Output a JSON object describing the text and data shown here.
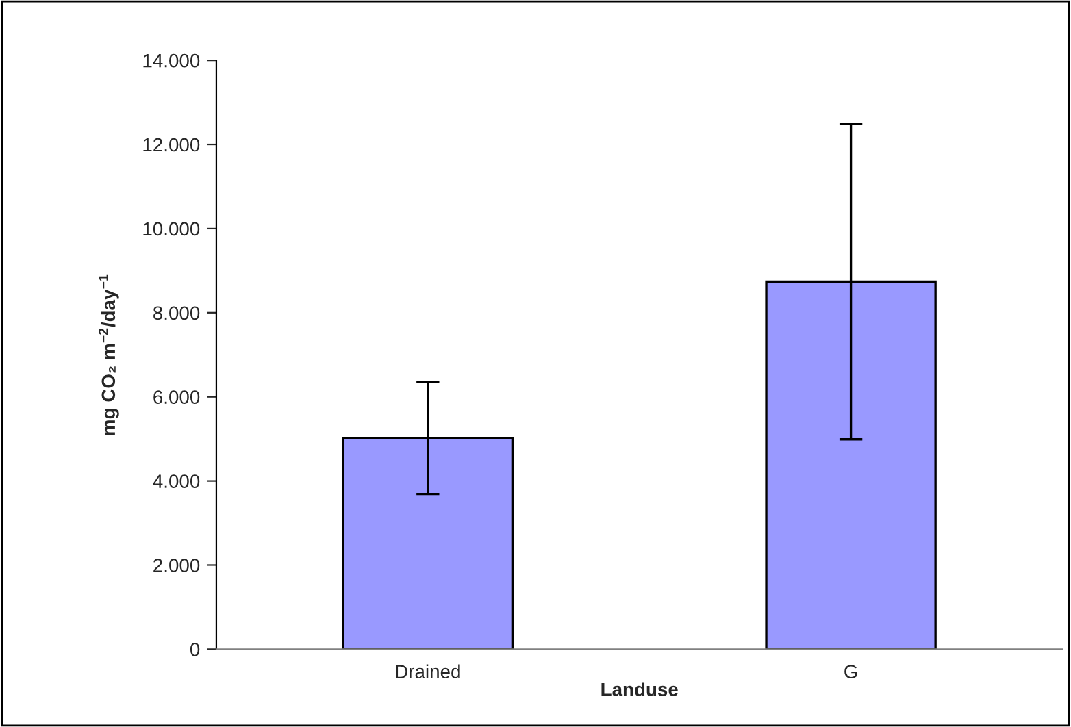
{
  "chart_data": {
    "type": "bar",
    "xlabel": "Landuse",
    "ylabel": "mg CO₂ m$^{−2}$/day$^{−1}$",
    "categories": [
      "Drained",
      "G"
    ],
    "values": [
      5020,
      8740
    ],
    "errors": [
      1330,
      3750
    ],
    "color": "#9999ff",
    "ylim": [
      0,
      14000
    ],
    "yticks": [
      0,
      {
        "value": 2000,
        "label": "2.000"
      },
      {
        "value": 4000,
        "label": "4.000"
      },
      {
        "value": 6000,
        "label": "6.000"
      },
      {
        "value": 8000,
        "label": "8.000"
      },
      {
        "value": 10000,
        "label": "10.000"
      },
      {
        "value": 12000,
        "label": "12.000"
      },
      {
        "value": 14000,
        "label": "14.000"
      }
    ],
    "grid": false,
    "legend": false
  }
}
